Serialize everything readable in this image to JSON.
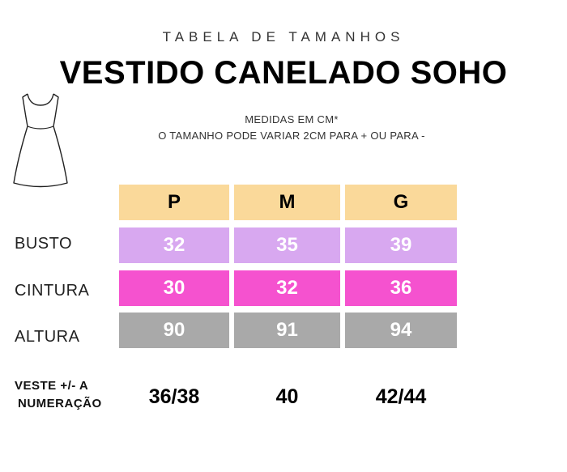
{
  "header": {
    "subtitle": "TABELA DE TAMANHOS",
    "title": "VESTIDO CANELADO SOHO"
  },
  "notes": {
    "line1": "MEDIDAS EM CM*",
    "line2": "O TAMANHO PODE VARIAR 2CM PARA + OU PARA -"
  },
  "icons": {
    "product": "dress-icon"
  },
  "table": {
    "sizes": [
      "P",
      "M",
      "G"
    ],
    "rows": [
      {
        "label": "BUSTO",
        "values": [
          "32",
          "35",
          "39"
        ],
        "color": "#d8a8f0"
      },
      {
        "label": "CINTURA",
        "values": [
          "30",
          "32",
          "36"
        ],
        "color": "#f552cf"
      },
      {
        "label": "ALTURA",
        "values": [
          "90",
          "91",
          "94"
        ],
        "color": "#a9a9a9"
      }
    ],
    "header_color": "#fad99a"
  },
  "equivalence": {
    "label_line1": "VESTE +/- A",
    "label_line2": "NUMERAÇÃO",
    "values": [
      "36/38",
      "40",
      "42/44"
    ]
  }
}
